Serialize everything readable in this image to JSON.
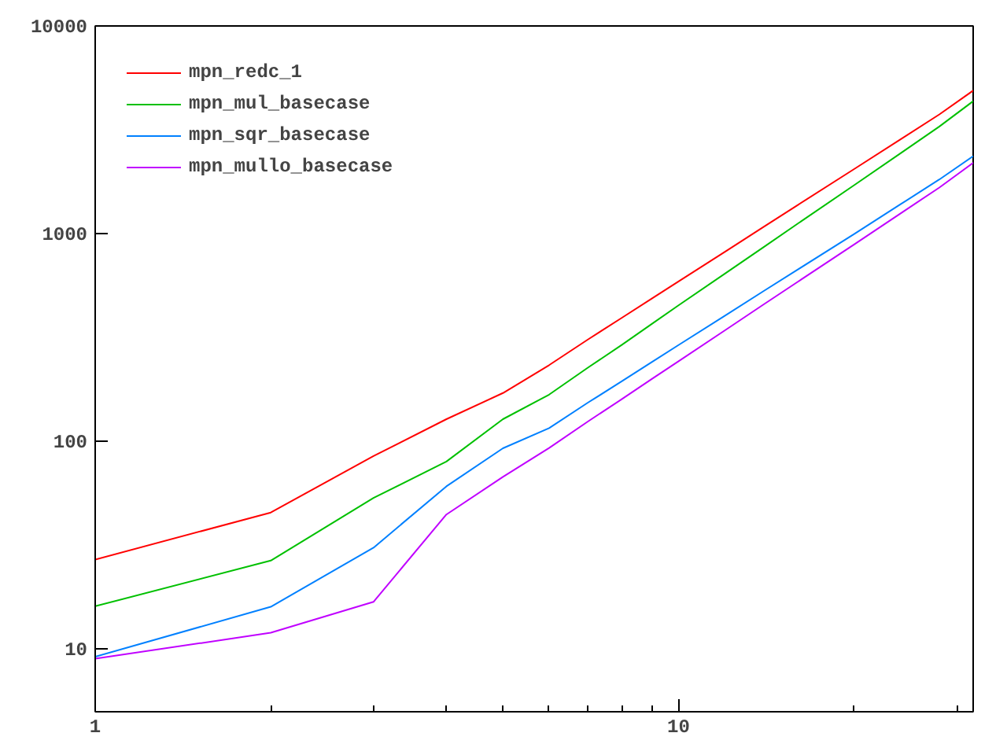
{
  "chart_data": {
    "type": "line",
    "x": [
      1,
      2,
      3,
      4,
      5,
      6,
      7,
      8,
      9,
      10,
      12,
      14,
      16,
      20,
      24,
      28,
      32
    ],
    "series": [
      {
        "name": "mpn_redc_1",
        "color": "#ff0000",
        "values": [
          27,
          45.5,
          85,
          128,
          171,
          233,
          310,
          394,
          487,
          589,
          817,
          1080,
          1373,
          2046,
          2840,
          3750,
          4885
        ]
      },
      {
        "name": "mpn_mul_basecase",
        "color": "#00c000",
        "values": [
          16.1,
          26.7,
          53.5,
          80,
          128,
          168,
          227,
          292,
          368,
          452,
          641,
          863,
          1117,
          1711,
          2434,
          3280,
          4345
        ]
      },
      {
        "name": "mpn_sqr_basecase",
        "color": "#0080ff",
        "values": [
          9.2,
          16,
          30.8,
          60.8,
          92.7,
          116,
          154,
          195,
          241,
          291,
          402,
          530,
          671,
          996,
          1383,
          1824,
          2362
        ]
      },
      {
        "name": "mpn_mullo_basecase",
        "color": "#c000ff",
        "values": [
          9,
          12,
          16.9,
          44.5,
          67.5,
          93,
          125,
          160,
          200,
          243,
          342,
          457,
          586,
          887,
          1250,
          1668,
          2193
        ]
      }
    ],
    "log": "xy",
    "xlim": [
      1,
      32
    ],
    "ylim": [
      5,
      10000
    ],
    "xticks": [
      1,
      {
        "value": 2,
        "label": null
      },
      {
        "value": 3,
        "label": null
      },
      {
        "value": 4,
        "label": null
      },
      {
        "value": 5,
        "label": null
      },
      {
        "value": 6,
        "label": null
      },
      {
        "value": 7,
        "label": null
      },
      {
        "value": 8,
        "label": null
      },
      {
        "value": 9,
        "label": null
      },
      10,
      {
        "value": 20,
        "label": null
      },
      {
        "value": 30,
        "label": null
      }
    ],
    "yticks": [
      10,
      100,
      1000,
      10000
    ],
    "grid": false,
    "legend": "top left",
    "marker": "none",
    "line_style": "solid"
  }
}
